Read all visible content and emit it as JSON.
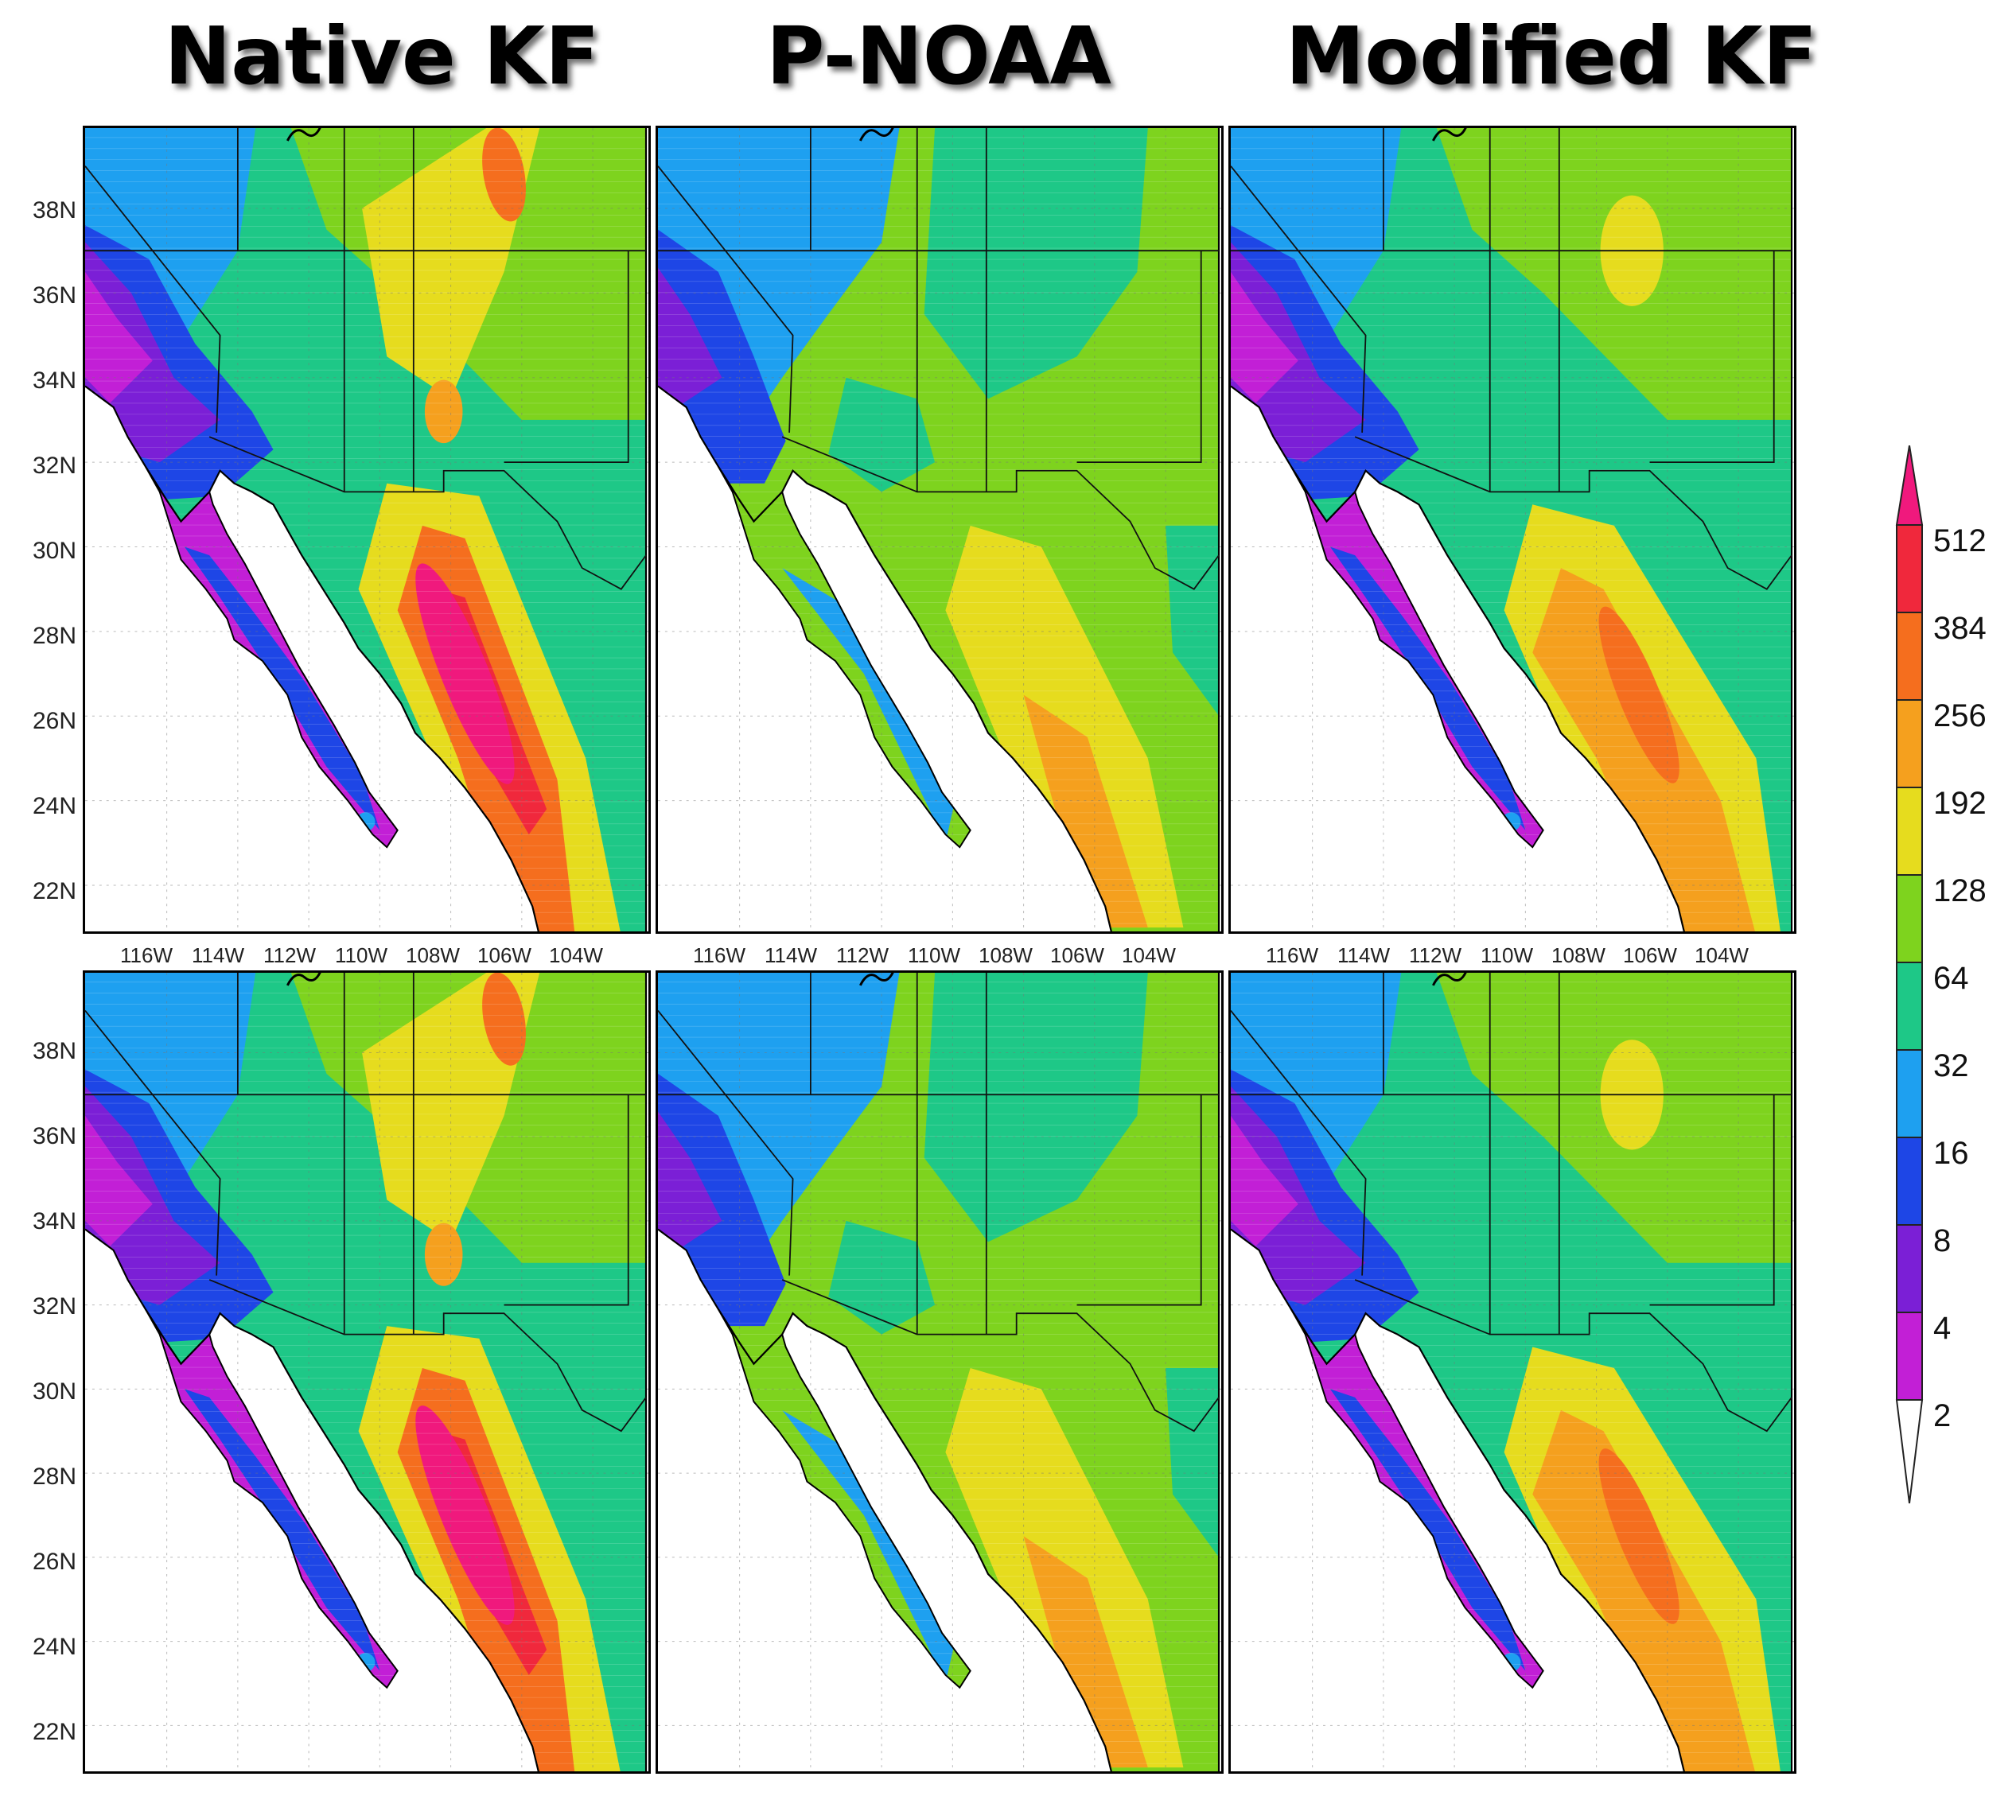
{
  "columns": [
    {
      "id": "native-kf",
      "title": "Native KF"
    },
    {
      "id": "p-noaa",
      "title": "P-NOAA"
    },
    {
      "id": "modified-kf",
      "title": "Modified KF"
    }
  ],
  "lat_labels": [
    "38N",
    "36N",
    "34N",
    "32N",
    "30N",
    "28N",
    "26N",
    "24N",
    "22N"
  ],
  "lon_labels": [
    "116W",
    "114W",
    "112W",
    "110W",
    "108W",
    "106W",
    "104W"
  ],
  "colorbar": {
    "levels": [
      "2",
      "4",
      "8",
      "16",
      "32",
      "64",
      "128",
      "192",
      "256",
      "384",
      "512"
    ],
    "colors": [
      "#ffffff",
      "#c21fd6",
      "#7b1fd6",
      "#1e46e6",
      "#1ea0f0",
      "#1ec887",
      "#7ed31e",
      "#e6dc1e",
      "#f5a01e",
      "#f56e1e",
      "#f0283c",
      "#f0197d"
    ]
  }
}
